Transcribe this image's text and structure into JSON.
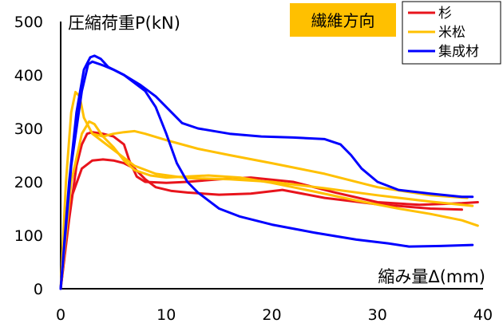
{
  "chart_data": {
    "type": "line",
    "title": "繊維方向",
    "xlabel": "縮み量Δ(mm)",
    "ylabel": "圧縮荷重P(kN)",
    "xlim": [
      0,
      40
    ],
    "ylim": [
      0,
      500
    ],
    "xticks": [
      0,
      10,
      20,
      30,
      40
    ],
    "yticks": [
      0,
      100,
      200,
      300,
      400,
      500
    ],
    "grid": false,
    "legend_position": "top-right",
    "badge_color": "#FFC000",
    "series": [
      {
        "name": "杉",
        "color": "#E8141C",
        "curves": [
          [
            [
              0,
              0
            ],
            [
              0.8,
              130
            ],
            [
              1.5,
              230
            ],
            [
              2.0,
              270
            ],
            [
              2.5,
              290
            ],
            [
              3.0,
              293
            ],
            [
              4.0,
              290
            ],
            [
              5.0,
              285
            ],
            [
              6.0,
              270
            ],
            [
              6.5,
              240
            ],
            [
              7.2,
              210
            ],
            [
              8.0,
              200
            ],
            [
              10,
              198
            ],
            [
              12,
              200
            ],
            [
              15,
              205
            ],
            [
              18,
              208
            ],
            [
              22,
              200
            ],
            [
              26,
              180
            ],
            [
              30,
              162
            ],
            [
              34,
              157
            ],
            [
              38,
              160
            ],
            [
              39.5,
              162
            ]
          ],
          [
            [
              0,
              0
            ],
            [
              1.0,
              170
            ],
            [
              2.0,
              225
            ],
            [
              3.0,
              240
            ],
            [
              4.0,
              242
            ],
            [
              5.0,
              240
            ],
            [
              6.0,
              235
            ],
            [
              7.0,
              225
            ],
            [
              8.0,
              205
            ],
            [
              9.0,
              190
            ],
            [
              10.5,
              183
            ],
            [
              12,
              180
            ],
            [
              15,
              176
            ],
            [
              18,
              178
            ],
            [
              21,
              185
            ],
            [
              25,
              170
            ],
            [
              30,
              158
            ],
            [
              35,
              150
            ],
            [
              38,
              148
            ]
          ]
        ]
      },
      {
        "name": "米松",
        "color": "#FFC000",
        "curves": [
          [
            [
              0,
              0
            ],
            [
              0.5,
              200
            ],
            [
              1.0,
              330
            ],
            [
              1.4,
              368
            ],
            [
              1.8,
              360
            ],
            [
              2.2,
              320
            ],
            [
              3.0,
              290
            ],
            [
              4.0,
              285
            ],
            [
              5.0,
              290
            ],
            [
              6.0,
              293
            ],
            [
              7.0,
              295
            ],
            [
              8.0,
              290
            ],
            [
              10,
              278
            ],
            [
              13,
              262
            ],
            [
              16,
              250
            ],
            [
              20,
              235
            ],
            [
              25,
              215
            ],
            [
              30,
              190
            ],
            [
              35,
              175
            ],
            [
              38.5,
              170
            ]
          ],
          [
            [
              0,
              0
            ],
            [
              1.0,
              200
            ],
            [
              2.0,
              290
            ],
            [
              2.7,
              313
            ],
            [
              3.2,
              308
            ],
            [
              4.0,
              285
            ],
            [
              5.0,
              265
            ],
            [
              6.0,
              240
            ],
            [
              7.0,
              222
            ],
            [
              8.5,
              212
            ],
            [
              10,
              208
            ],
            [
              12,
              210
            ],
            [
              14,
              212
            ],
            [
              17,
              208
            ],
            [
              20,
              198
            ],
            [
              24,
              182
            ],
            [
              28,
              165
            ],
            [
              32,
              150
            ],
            [
              35,
              140
            ],
            [
              38,
              128
            ],
            [
              39.5,
              118
            ]
          ],
          [
            [
              3.0,
              290
            ],
            [
              5.0,
              260
            ],
            [
              7.0,
              230
            ],
            [
              9.0,
              215
            ],
            [
              12,
              207
            ],
            [
              16,
              205
            ],
            [
              20,
              200
            ],
            [
              25,
              188
            ],
            [
              30,
              175
            ],
            [
              35,
              163
            ],
            [
              39,
              155
            ]
          ]
        ]
      },
      {
        "name": "集成材",
        "color": "#0000FF",
        "curves": [
          [
            [
              0,
              0
            ],
            [
              0.8,
              200
            ],
            [
              1.5,
              330
            ],
            [
              2.2,
              410
            ],
            [
              2.8,
              433
            ],
            [
              3.2,
              436
            ],
            [
              3.8,
              430
            ],
            [
              4.5,
              415
            ],
            [
              6.0,
              400
            ],
            [
              7.5,
              382
            ],
            [
              9.0,
              360
            ],
            [
              10.5,
              330
            ],
            [
              11.5,
              310
            ],
            [
              13,
              300
            ],
            [
              16,
              290
            ],
            [
              19,
              285
            ],
            [
              22,
              283
            ],
            [
              25,
              280
            ],
            [
              26.5,
              270
            ],
            [
              27.5,
              250
            ],
            [
              28.5,
              225
            ],
            [
              30,
              200
            ],
            [
              32,
              185
            ],
            [
              35,
              178
            ],
            [
              38,
              172
            ],
            [
              39,
              172
            ]
          ],
          [
            [
              0,
              0
            ],
            [
              1.0,
              230
            ],
            [
              2.0,
              370
            ],
            [
              2.6,
              420
            ],
            [
              3.0,
              425
            ],
            [
              4.0,
              418
            ],
            [
              5.0,
              410
            ],
            [
              6.0,
              400
            ],
            [
              7.0,
              385
            ],
            [
              8.0,
              370
            ],
            [
              9.0,
              340
            ],
            [
              10,
              290
            ],
            [
              11,
              235
            ],
            [
              12,
              200
            ],
            [
              13,
              180
            ],
            [
              14,
              165
            ],
            [
              15,
              150
            ],
            [
              17,
              135
            ],
            [
              20,
              120
            ],
            [
              24,
              105
            ],
            [
              28,
              92
            ],
            [
              31,
              85
            ],
            [
              33,
              79
            ],
            [
              36,
              80
            ],
            [
              39,
              82
            ]
          ]
        ]
      }
    ]
  }
}
